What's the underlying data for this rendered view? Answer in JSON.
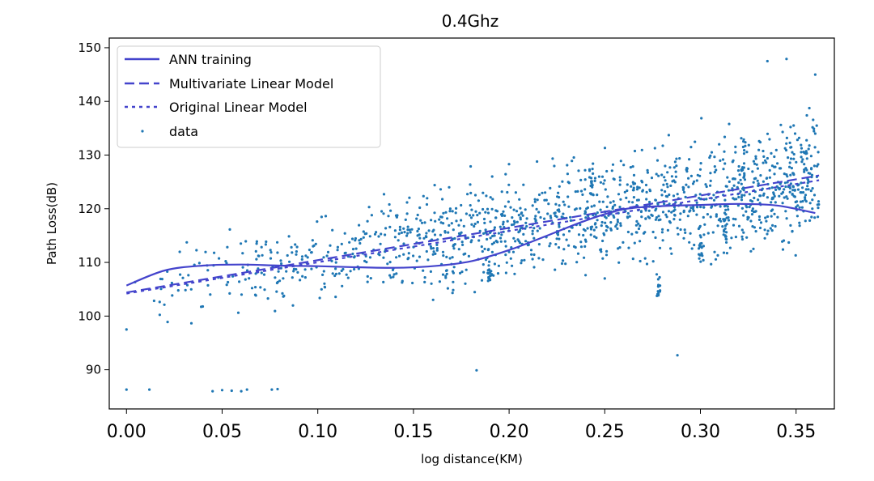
{
  "chart_data": {
    "type": "scatter",
    "title": "0.4Ghz",
    "xlabel": "log distance(KM)",
    "ylabel": "Path Loss(dB)",
    "xlim": [
      -0.009,
      0.37
    ],
    "ylim": [
      82.7,
      151.8
    ],
    "xticks": [
      0.0,
      0.05,
      0.1,
      0.15,
      0.2,
      0.25,
      0.3,
      0.35
    ],
    "xtick_labels": [
      "0.00",
      "0.05",
      "0.10",
      "0.15",
      "0.20",
      "0.25",
      "0.30",
      "0.35"
    ],
    "yticks": [
      90,
      100,
      110,
      120,
      130,
      140,
      150
    ],
    "ytick_labels": [
      "90",
      "100",
      "110",
      "120",
      "130",
      "140",
      "150"
    ],
    "legend_position": "upper-left",
    "grid": false,
    "colors": {
      "lines": "#4444cc",
      "points": "#1f77b4"
    },
    "series": [
      {
        "name": "ANN training",
        "type": "line",
        "style": "solid",
        "x": [
          0.0,
          0.02,
          0.04,
          0.06,
          0.08,
          0.1,
          0.12,
          0.14,
          0.16,
          0.18,
          0.2,
          0.22,
          0.24,
          0.26,
          0.28,
          0.3,
          0.32,
          0.34,
          0.36
        ],
        "y": [
          105.7,
          108.5,
          109.4,
          109.6,
          109.4,
          109.3,
          109.1,
          109.0,
          109.3,
          110.2,
          112.3,
          115.0,
          117.8,
          119.9,
          120.5,
          120.7,
          120.9,
          120.6,
          119.2
        ]
      },
      {
        "name": "Multivariate Linear Model",
        "type": "line",
        "style": "dashed",
        "x": [
          0.0,
          0.362
        ],
        "y": [
          104.4,
          126.2
        ]
      },
      {
        "name": "Original Linear Model",
        "type": "line",
        "style": "dotted",
        "x": [
          0.0,
          0.362
        ],
        "y": [
          104.2,
          125.3
        ]
      },
      {
        "name": "data",
        "type": "scatter",
        "trend": {
          "x0": 0.0,
          "y0": 104.4,
          "x1": 0.362,
          "y1": 126.2
        },
        "spread_db": 8,
        "count": 1400,
        "x": [
          0.0,
          0.0,
          0.012,
          0.045,
          0.05,
          0.055,
          0.06,
          0.063,
          0.076,
          0.079,
          0.183,
          0.19,
          0.245,
          0.25,
          0.278,
          0.288,
          0.3,
          0.313,
          0.322,
          0.33,
          0.335,
          0.345,
          0.36
        ],
        "y": [
          97.5,
          86.3,
          86.3,
          86.0,
          86.2,
          86.1,
          86.0,
          86.3,
          86.3,
          86.4,
          89.9,
          108.1,
          125.7,
          107.0,
          105.5,
          92.7,
          113.5,
          116.3,
          127.7,
          127.5,
          147.5,
          147.9,
          145.0
        ]
      }
    ]
  }
}
